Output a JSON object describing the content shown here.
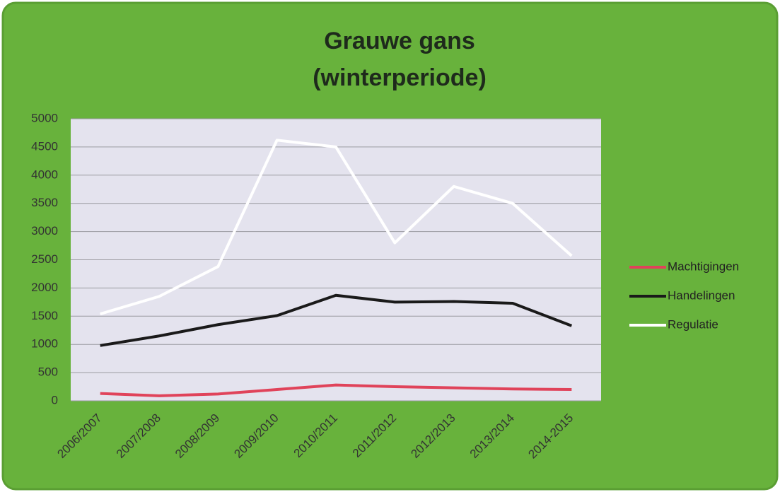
{
  "chart_data": {
    "type": "line",
    "title": "Grauwe gans",
    "subtitle": "(winterperiode)",
    "categories": [
      "2006/2007",
      "2007/2008",
      "2008/2009",
      "2009/2010",
      "2010/2011",
      "2011/2012",
      "2012/2013",
      "2013/2014",
      "2014-2015"
    ],
    "series": [
      {
        "name": "Machtigingen",
        "color": "#e0435a",
        "values": [
          130,
          90,
          120,
          200,
          280,
          250,
          230,
          210,
          200
        ]
      },
      {
        "name": "Handelingen",
        "color": "#1a1a1a",
        "values": [
          980,
          1150,
          1350,
          1510,
          1870,
          1750,
          1760,
          1730,
          1330
        ]
      },
      {
        "name": "Regulatie",
        "color": "#ffffff",
        "values": [
          1540,
          1850,
          2380,
          4620,
          4500,
          2800,
          3800,
          3500,
          2570
        ]
      }
    ],
    "ylim": [
      0,
      5000
    ],
    "yticks": [
      0,
      500,
      1000,
      1500,
      2000,
      2500,
      3000,
      3500,
      4000,
      4500,
      5000
    ],
    "grid": true,
    "legend": "right"
  }
}
